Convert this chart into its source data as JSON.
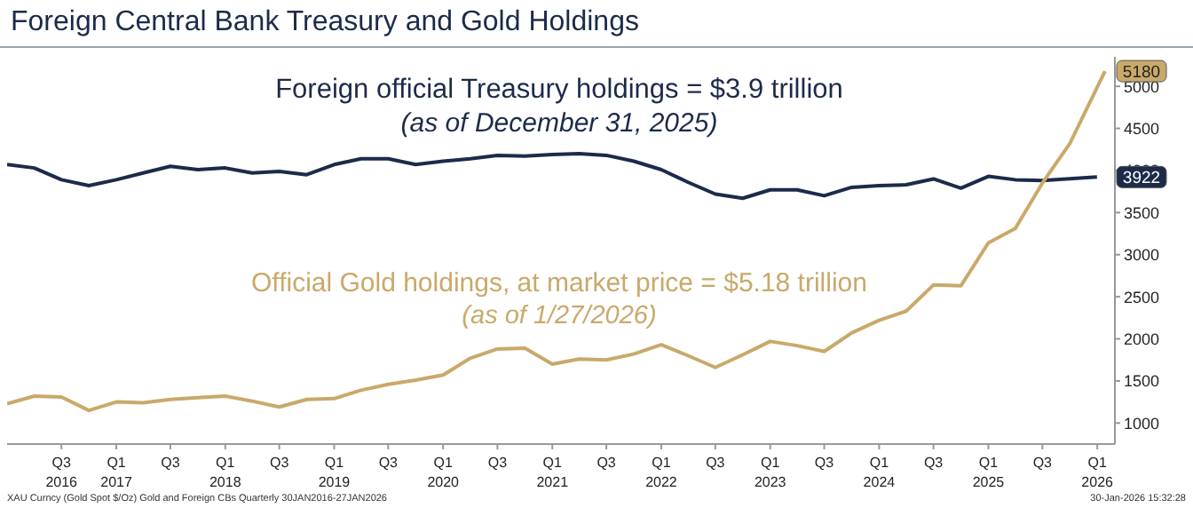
{
  "chart_data": {
    "type": "line",
    "title": "Foreign Central Bank Treasury and Gold Holdings",
    "annotations": [
      "Foreign official Treasury holdings = $3.9 trillion",
      "(as of December 31, 2025)",
      "Official Gold holdings, at market price = $5.18 trillion",
      "(as of 1/27/2026)",
      "XAU Curncy (Gold Spot $/Oz) Gold and Foreign CBs Quarterly 30JAN2016-27JAN2026",
      "30-Jan-2026 15:32:28"
    ],
    "xlim": [
      "2016-01",
      "2026-03"
    ],
    "xticks": [
      {
        "value": "2016-07",
        "label": "Q3\n2016"
      },
      {
        "value": "2017-01",
        "label": "Q1\n2017"
      },
      {
        "value": "2017-07",
        "label": "Q3"
      },
      {
        "value": "2018-01",
        "label": "Q1\n2018"
      },
      {
        "value": "2018-07",
        "label": "Q3"
      },
      {
        "value": "2019-01",
        "label": "Q1\n2019"
      },
      {
        "value": "2019-07",
        "label": "Q3"
      },
      {
        "value": "2020-01",
        "label": "Q1\n2020"
      },
      {
        "value": "2020-07",
        "label": "Q3"
      },
      {
        "value": "2021-01",
        "label": "Q1\n2021"
      },
      {
        "value": "2021-07",
        "label": "Q3"
      },
      {
        "value": "2022-01",
        "label": "Q1\n2022"
      },
      {
        "value": "2022-07",
        "label": "Q3"
      },
      {
        "value": "2023-01",
        "label": "Q1\n2023"
      },
      {
        "value": "2023-07",
        "label": "Q3"
      },
      {
        "value": "2024-01",
        "label": "Q1\n2024"
      },
      {
        "value": "2024-07",
        "label": "Q3"
      },
      {
        "value": "2025-01",
        "label": "Q1\n2025"
      },
      {
        "value": "2025-07",
        "label": "Q3"
      },
      {
        "value": "2026-01",
        "label": "Q1\n2026"
      }
    ],
    "ylim": [
      750,
      5350
    ],
    "yticks": [
      1000,
      1500,
      2000,
      2500,
      3000,
      3500,
      4000,
      4500,
      5000
    ],
    "grid": false,
    "legend": false,
    "marker": "none",
    "line_style": "solid",
    "series": [
      {
        "color": "#1c2b4a",
        "x": [
          "2016-01",
          "2016-04",
          "2016-07",
          "2016-10",
          "2017-01",
          "2017-04",
          "2017-07",
          "2017-10",
          "2018-01",
          "2018-04",
          "2018-07",
          "2018-10",
          "2019-01",
          "2019-04",
          "2019-07",
          "2019-10",
          "2020-01",
          "2020-04",
          "2020-07",
          "2020-10",
          "2021-01",
          "2021-04",
          "2021-07",
          "2021-10",
          "2022-01",
          "2022-04",
          "2022-07",
          "2022-10",
          "2023-01",
          "2023-04",
          "2023-07",
          "2023-10",
          "2024-01",
          "2024-04",
          "2024-07",
          "2024-10",
          "2025-01",
          "2025-04",
          "2025-07",
          "2025-12-31"
        ],
        "values": [
          4070,
          4030,
          3890,
          3820,
          3890,
          3970,
          4050,
          4010,
          4030,
          3970,
          3990,
          3950,
          4070,
          4140,
          4140,
          4070,
          4110,
          4140,
          4180,
          4170,
          4190,
          4200,
          4180,
          4110,
          4010,
          3860,
          3720,
          3670,
          3770,
          3770,
          3700,
          3800,
          3820,
          3830,
          3900,
          3790,
          3930,
          3890,
          3880,
          3922
        ],
        "value_labels": [
          null,
          null,
          null,
          null,
          null,
          null,
          null,
          null,
          null,
          null,
          null,
          null,
          null,
          null,
          null,
          null,
          null,
          null,
          null,
          null,
          null,
          null,
          null,
          null,
          null,
          null,
          null,
          null,
          null,
          null,
          null,
          null,
          null,
          null,
          null,
          null,
          null,
          null,
          null,
          "3922"
        ]
      },
      {
        "color": "#c9a96a",
        "x": [
          "2016-01",
          "2016-04",
          "2016-07",
          "2016-10",
          "2017-01",
          "2017-04",
          "2017-07",
          "2017-10",
          "2018-01",
          "2018-04",
          "2018-07",
          "2018-10",
          "2019-01",
          "2019-04",
          "2019-07",
          "2019-10",
          "2020-01",
          "2020-04",
          "2020-07",
          "2020-10",
          "2021-01",
          "2021-04",
          "2021-07",
          "2021-10",
          "2022-01",
          "2022-04",
          "2022-07",
          "2022-10",
          "2023-01",
          "2023-04",
          "2023-07",
          "2023-10",
          "2024-01",
          "2024-04",
          "2024-07",
          "2024-10",
          "2025-01",
          "2025-04",
          "2025-07",
          "2025-10",
          "2026-01-27"
        ],
        "values": [
          1230,
          1320,
          1310,
          1150,
          1250,
          1240,
          1280,
          1300,
          1320,
          1260,
          1190,
          1280,
          1290,
          1390,
          1460,
          1510,
          1570,
          1770,
          1880,
          1890,
          1700,
          1760,
          1750,
          1820,
          1930,
          1800,
          1660,
          1810,
          1970,
          1920,
          1850,
          2070,
          2220,
          2330,
          2640,
          2630,
          3140,
          3310,
          3850,
          4320,
          5180
        ],
        "value_labels": [
          null,
          null,
          null,
          null,
          null,
          null,
          null,
          null,
          null,
          null,
          null,
          null,
          null,
          null,
          null,
          null,
          null,
          null,
          null,
          null,
          null,
          null,
          null,
          null,
          null,
          null,
          null,
          null,
          null,
          null,
          null,
          null,
          null,
          null,
          null,
          null,
          null,
          null,
          null,
          null,
          "5180"
        ]
      }
    ]
  }
}
